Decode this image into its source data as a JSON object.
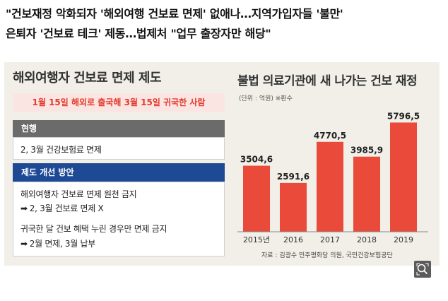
{
  "headline": {
    "line1": "\"건보재정 악화되자 '해외여행 건보료 면제' 없애나…지역가입자들 '불만'",
    "line2": "은퇴자 '건보료 테크' 제동…법제처 \"업무 출장자만 해당\""
  },
  "panel": {
    "title": "해외여행자 건보료 면제 제도",
    "subtitle": "1월 15일 해외로 출국해 3월 15일 귀국한 사람",
    "current_header": "현행",
    "current_text": "2, 3월 건강보험료 면제",
    "improve_header": "제도 개선 방안",
    "improve_line1": "해외여행자 건보료 면제 원천 금지",
    "improve_line2": "2, 3월 건보료 면제 X",
    "improve_line3": "귀국한 달 건보 혜택 누린 경우만 면제 금지",
    "improve_line4": "2월 면제, 3월 납부",
    "arrow": "➡"
  },
  "chart_data": {
    "type": "bar",
    "title": "불법 의료기관에 새 나가는 건보 재정",
    "unit": "(단위 : 억원) ※환수",
    "categories": [
      "2015년",
      "2016",
      "2017",
      "2018",
      "2019"
    ],
    "values": [
      3504.6,
      2591.6,
      4770.5,
      3985.9,
      5796.5
    ],
    "value_labels": [
      "3504,6",
      "2591,6",
      "4770,5",
      "3985,9",
      "5796,5"
    ],
    "source": "자료 : 김광수 민주평화당 의원, 국민건강보험공단",
    "bar_color": "#ea4a39",
    "ylim": [
      0,
      6000
    ]
  },
  "icons": {
    "zoom": "zoom-icon"
  }
}
